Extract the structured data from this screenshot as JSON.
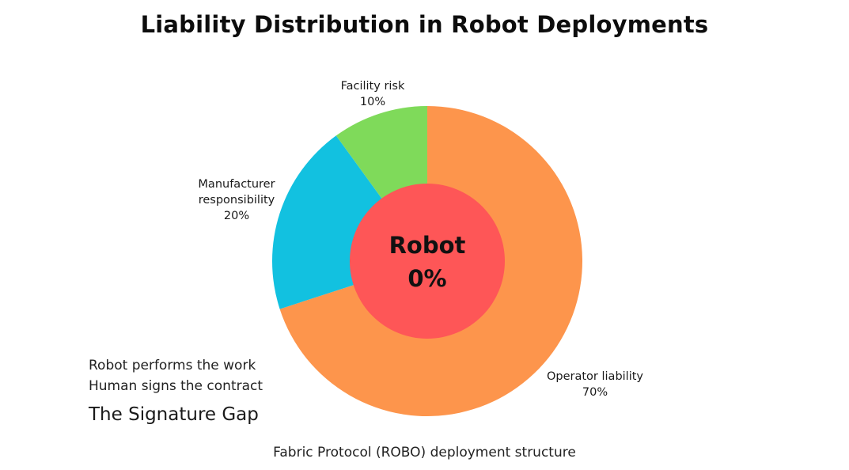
{
  "chart_data": {
    "type": "pie",
    "title": "Liability Distribution in Robot Deployments",
    "slices": [
      {
        "label": "Operator liability",
        "value": 70,
        "value_label": "70%",
        "color": "#fd954c"
      },
      {
        "label": "Manufacturer responsibility",
        "label_lines": [
          "Manufacturer",
          "responsibility"
        ],
        "value": 20,
        "value_label": "20%",
        "color": "#12c1e0"
      },
      {
        "label": "Facility risk",
        "value": 10,
        "value_label": "10%",
        "color": "#7fda5a"
      }
    ],
    "center": {
      "label": "Robot",
      "value_label": "0%",
      "color": "#fe5657"
    },
    "start_angle_deg": 0,
    "direction": "clockwise",
    "legend": "none",
    "grid": false
  },
  "notes": {
    "line1": "Robot performs the work",
    "line2": "Human signs the contract",
    "heading": "The Signature Gap"
  },
  "footer": "Fabric Protocol (ROBO) deployment structure"
}
